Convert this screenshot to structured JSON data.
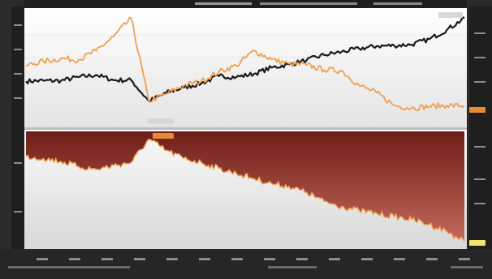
{
  "chart_data": [
    {
      "type": "line",
      "panel": "top",
      "grid": true,
      "legend": "top-right",
      "x": [
        0,
        4,
        8,
        12,
        16,
        20,
        24,
        28,
        32,
        36,
        40,
        44,
        48,
        52,
        56,
        60,
        64,
        68,
        72,
        76,
        80,
        84,
        88,
        92,
        96,
        100
      ],
      "series": [
        {
          "color": "#1a1a1a",
          "values": [
            120,
            121,
            121,
            128,
            132,
            122,
            122,
            82,
            98,
            108,
            116,
            130,
            128,
            134,
            146,
            152,
            160,
            170,
            176,
            182,
            187,
            188,
            190,
            200,
            218,
            240
          ]
        },
        {
          "color": "#f0a050",
          "values": [
            150,
            158,
            163,
            161,
            178,
            205,
            240,
            82,
            96,
            112,
            120,
            138,
            150,
            178,
            162,
            153,
            151,
            142,
            140,
            112,
            98,
            74,
            69,
            72,
            74,
            73
          ]
        }
      ],
      "ylim": [
        40,
        250
      ],
      "end_label": "",
      "low_label": ""
    },
    {
      "type": "area",
      "panel": "bottom",
      "grid": false,
      "x": [
        0,
        4,
        8,
        12,
        16,
        20,
        24,
        28,
        32,
        36,
        40,
        44,
        48,
        52,
        56,
        60,
        64,
        68,
        72,
        76,
        80,
        84,
        88,
        92,
        96,
        100
      ],
      "values": [
        10,
        12,
        15,
        20,
        23,
        19,
        16,
        -7,
        4,
        12,
        16,
        22,
        27,
        32,
        37,
        40,
        46,
        55,
        60,
        64,
        67,
        70,
        73,
        78,
        85,
        95
      ],
      "ylim": [
        -15,
        100
      ],
      "peak_label": "",
      "end_label": ""
    }
  ],
  "colors": {
    "orange": "#f0a050",
    "black": "#1a1a1a",
    "maroon_top": "#6e1e17",
    "maroon_bottom": "#c46a5c",
    "badge_orange": "#e68a34",
    "badge_yellow": "#f2e36a"
  }
}
